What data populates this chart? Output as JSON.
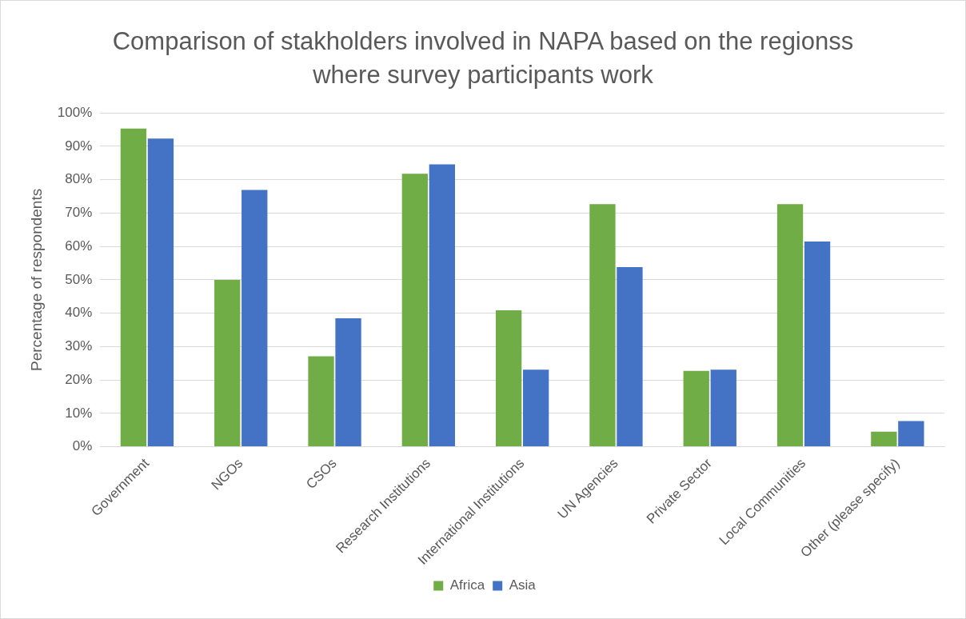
{
  "chart_data": {
    "type": "bar",
    "title": "Comparison of stakholders involved in NAPA based on the regionss where survey participants work",
    "ylabel": "Percentage of respondents",
    "categories": [
      "Government",
      "NGOs",
      "CSOs",
      "Research Institutions",
      "International Institutions",
      "UN Agencies",
      "Private Sector",
      "Local Communities",
      "Other (please specify)"
    ],
    "series": [
      {
        "name": "Africa",
        "color": "#70ad47",
        "values": [
          95.3,
          50,
          27.1,
          81.8,
          40.9,
          72.7,
          22.7,
          72.7,
          4.5
        ]
      },
      {
        "name": "Asia",
        "color": "#4472c4",
        "values": [
          92.3,
          76.9,
          38.5,
          84.6,
          23.1,
          53.8,
          23.1,
          61.5,
          7.7
        ]
      }
    ],
    "ylim": [
      0,
      100
    ],
    "yticks": [
      {
        "value": 0,
        "label": "0%"
      },
      {
        "value": 10,
        "label": "10%"
      },
      {
        "value": 20,
        "label": "20%"
      },
      {
        "value": 30,
        "label": "30%"
      },
      {
        "value": 40,
        "label": "40%"
      },
      {
        "value": 50,
        "label": "50%"
      },
      {
        "value": 60,
        "label": "60%"
      },
      {
        "value": 70,
        "label": "70%"
      },
      {
        "value": 80,
        "label": "80%"
      },
      {
        "value": 90,
        "label": "90%"
      },
      {
        "value": 100,
        "label": "100%"
      }
    ],
    "grid": "y",
    "legend": "bottom"
  }
}
